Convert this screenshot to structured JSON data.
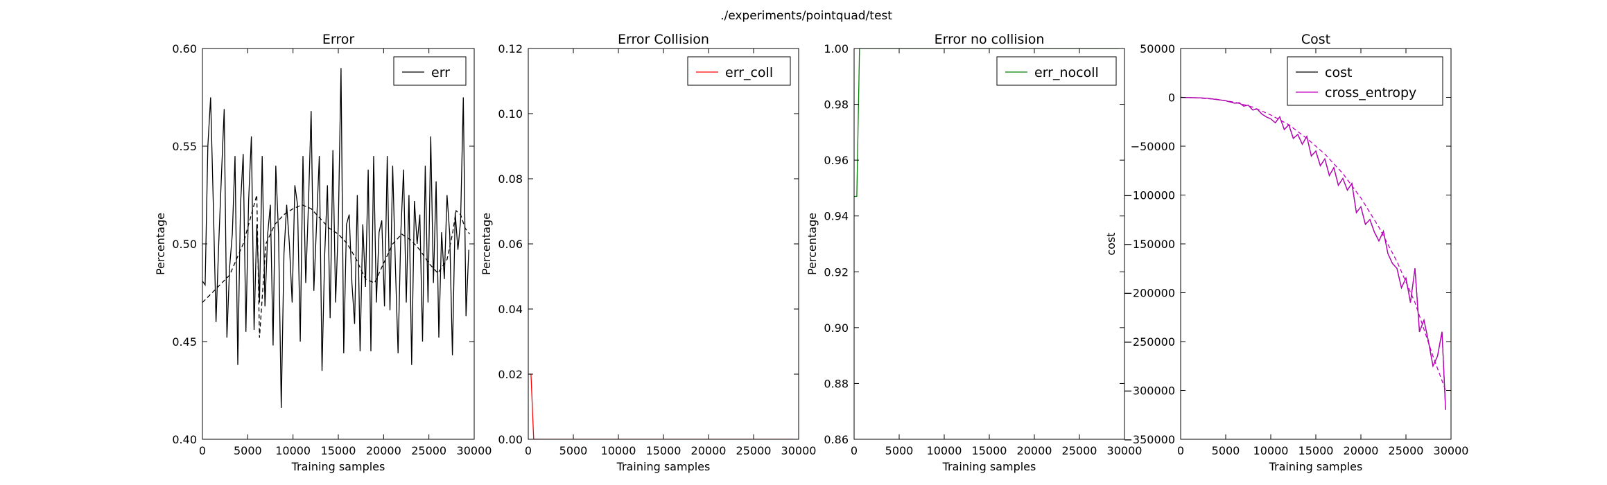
{
  "figure": {
    "suptitle": "./experiments/pointquad/test"
  },
  "chart_data": [
    {
      "type": "line",
      "title": "Error",
      "xlabel": "Training samples",
      "ylabel": "Percentage",
      "xlim": [
        0,
        30000
      ],
      "ylim": [
        0.4,
        0.6
      ],
      "xticks": [
        "0",
        "5000",
        "10000",
        "15000",
        "20000",
        "25000",
        "30000"
      ],
      "yticks": [
        "0.40",
        "0.45",
        "0.50",
        "0.55",
        "0.60"
      ],
      "legend_position": "top-right",
      "grid": false,
      "series": [
        {
          "name": "err",
          "color": "#000000",
          "style": "solid",
          "x": [
            0,
            300,
            600,
            900,
            1200,
            1500,
            1800,
            2100,
            2400,
            2700,
            3000,
            3300,
            3600,
            3900,
            4200,
            4500,
            4800,
            5100,
            5400,
            5700,
            6000,
            6300,
            6600,
            6900,
            7200,
            7500,
            7800,
            8100,
            8400,
            8700,
            9000,
            9300,
            9600,
            9900,
            10200,
            10500,
            10800,
            11100,
            11400,
            11700,
            12000,
            12300,
            12600,
            12900,
            13200,
            13500,
            13800,
            14100,
            14400,
            14700,
            15000,
            15300,
            15600,
            15900,
            16200,
            16500,
            16800,
            17100,
            17400,
            17700,
            18000,
            18300,
            18600,
            18900,
            19200,
            19500,
            19800,
            20100,
            20400,
            20700,
            21000,
            21300,
            21600,
            21900,
            22200,
            22500,
            22800,
            23100,
            23400,
            23700,
            24000,
            24300,
            24600,
            24900,
            25200,
            25500,
            25800,
            26100,
            26400,
            26700,
            27000,
            27300,
            27600,
            27900,
            28200,
            28500,
            28800,
            29100,
            29400
          ],
          "y": [
            0.481,
            0.479,
            0.55,
            0.575,
            0.52,
            0.46,
            0.5,
            0.535,
            0.569,
            0.452,
            0.488,
            0.505,
            0.545,
            0.438,
            0.52,
            0.546,
            0.455,
            0.522,
            0.555,
            0.456,
            0.51,
            0.47,
            0.545,
            0.468,
            0.505,
            0.52,
            0.448,
            0.54,
            0.505,
            0.416,
            0.495,
            0.52,
            0.5,
            0.47,
            0.53,
            0.52,
            0.45,
            0.545,
            0.48,
            0.52,
            0.568,
            0.476,
            0.51,
            0.545,
            0.435,
            0.495,
            0.53,
            0.462,
            0.548,
            0.47,
            0.51,
            0.59,
            0.444,
            0.51,
            0.515,
            0.48,
            0.459,
            0.525,
            0.445,
            0.51,
            0.478,
            0.538,
            0.445,
            0.545,
            0.47,
            0.506,
            0.512,
            0.468,
            0.545,
            0.466,
            0.54,
            0.489,
            0.444,
            0.506,
            0.538,
            0.47,
            0.525,
            0.438,
            0.522,
            0.5,
            0.515,
            0.45,
            0.54,
            0.47,
            0.555,
            0.48,
            0.532,
            0.452,
            0.506,
            0.482,
            0.525,
            0.505,
            0.443,
            0.516,
            0.497,
            0.512,
            0.575,
            0.463,
            0.497
          ]
        },
        {
          "name": "",
          "color": "#000000",
          "style": "dashed",
          "x": [
            0,
            1500,
            3000,
            4500,
            5400,
            6000,
            6300,
            7000,
            8000,
            9000,
            10000,
            11000,
            12000,
            13000,
            14000,
            15000,
            16000,
            17000,
            18000,
            19000,
            20000,
            21000,
            22000,
            23000,
            24000,
            25000,
            26000,
            27000,
            27600,
            28000,
            28500,
            29000,
            29500
          ],
          "y": [
            0.47,
            0.477,
            0.484,
            0.5,
            0.515,
            0.525,
            0.452,
            0.5,
            0.51,
            0.515,
            0.518,
            0.52,
            0.518,
            0.513,
            0.508,
            0.505,
            0.5,
            0.492,
            0.482,
            0.48,
            0.49,
            0.5,
            0.505,
            0.502,
            0.497,
            0.49,
            0.485,
            0.492,
            0.505,
            0.517,
            0.515,
            0.508,
            0.505
          ]
        }
      ]
    },
    {
      "type": "line",
      "title": "Error Collision",
      "xlabel": "Training samples",
      "ylabel": "Percentage",
      "xlim": [
        0,
        30000
      ],
      "ylim": [
        0.0,
        0.12
      ],
      "xticks": [
        "0",
        "5000",
        "10000",
        "15000",
        "20000",
        "25000",
        "30000"
      ],
      "yticks": [
        "0.00",
        "0.02",
        "0.04",
        "0.06",
        "0.08",
        "0.10",
        "0.12"
      ],
      "legend_position": "top-right",
      "grid": false,
      "series": [
        {
          "name": "err_coll",
          "color": "#ff0000",
          "style": "solid",
          "x": [
            0,
            300,
            600,
            900,
            5000,
            10000,
            15000,
            20000,
            25000,
            29400
          ],
          "y": [
            0.02,
            0.02,
            0.0,
            0.0,
            0.0,
            0.0,
            0.0,
            0.0,
            0.0,
            0.0
          ]
        }
      ]
    },
    {
      "type": "line",
      "title": "Error no collision",
      "xlabel": "Training samples",
      "ylabel": "Percentage",
      "xlim": [
        0,
        30000
      ],
      "ylim": [
        0.86,
        1.0
      ],
      "xticks": [
        "0",
        "5000",
        "10000",
        "15000",
        "20000",
        "25000",
        "30000"
      ],
      "yticks": [
        "0.86",
        "0.88",
        "0.90",
        "0.92",
        "0.94",
        "0.96",
        "0.98",
        "1.00"
      ],
      "legend_position": "top-right",
      "grid": false,
      "series": [
        {
          "name": "err_nocoll",
          "color": "#008000",
          "style": "solid",
          "x": [
            0,
            300,
            600,
            900,
            5000,
            10000,
            15000,
            20000,
            25000,
            29400
          ],
          "y": [
            0.947,
            0.947,
            1.0,
            1.0,
            1.0,
            1.0,
            1.0,
            1.0,
            1.0,
            1.0
          ]
        }
      ]
    },
    {
      "type": "line",
      "title": "Cost",
      "xlabel": "Training samples",
      "ylabel": "cost",
      "xlim": [
        0,
        30000
      ],
      "ylim": [
        -350000,
        50000
      ],
      "xticks": [
        "0",
        "5000",
        "10000",
        "15000",
        "20000",
        "25000",
        "30000"
      ],
      "yticks": [
        "−350000",
        "−300000",
        "−250000",
        "−200000",
        "−150000",
        "−100000",
        "−50000",
        "0",
        "50000"
      ],
      "yticks_values": [
        -350000,
        -300000,
        -250000,
        -200000,
        -150000,
        -100000,
        -50000,
        0,
        50000
      ],
      "legend_position": "top-right",
      "grid": false,
      "series": [
        {
          "name": "cost",
          "color": "#000000",
          "style": "solid",
          "x": [
            0,
            1000,
            2000,
            3000,
            4000,
            5000,
            6000,
            6500,
            7000,
            7500,
            8000,
            8500,
            9000,
            9500,
            10000,
            10500,
            11000,
            11500,
            12000,
            12500,
            13000,
            13500,
            14000,
            14500,
            15000,
            15500,
            16000,
            16500,
            17000,
            17500,
            18000,
            18500,
            19000,
            19500,
            20000,
            20500,
            21000,
            21500,
            22000,
            22500,
            23000,
            23500,
            24000,
            24500,
            25000,
            25500,
            26000,
            26500,
            27000,
            27500,
            28000,
            28500,
            29000,
            29400
          ],
          "y": [
            0,
            -300,
            -500,
            -1000,
            -2200,
            -3500,
            -6000,
            -5500,
            -9000,
            -8000,
            -13000,
            -12000,
            -17000,
            -20000,
            -22000,
            -26000,
            -20000,
            -33000,
            -28000,
            -42000,
            -38000,
            -48000,
            -40000,
            -60000,
            -55000,
            -70000,
            -63000,
            -80000,
            -72000,
            -90000,
            -83000,
            -95000,
            -88000,
            -118000,
            -112000,
            -130000,
            -125000,
            -138000,
            -147000,
            -137000,
            -160000,
            -170000,
            -175000,
            -195000,
            -185000,
            -210000,
            -175000,
            -240000,
            -228000,
            -250000,
            -275000,
            -265000,
            -240000,
            -320000
          ]
        },
        {
          "name": "cross_entropy",
          "color": "#bf00bf",
          "style": "solid",
          "x": [
            0,
            1000,
            2000,
            3000,
            4000,
            5000,
            6000,
            6500,
            7000,
            7500,
            8000,
            8500,
            9000,
            9500,
            10000,
            10500,
            11000,
            11500,
            12000,
            12500,
            13000,
            13500,
            14000,
            14500,
            15000,
            15500,
            16000,
            16500,
            17000,
            17500,
            18000,
            18500,
            19000,
            19500,
            20000,
            20500,
            21000,
            21500,
            22000,
            22500,
            23000,
            23500,
            24000,
            24500,
            25000,
            25500,
            26000,
            26500,
            27000,
            27500,
            28000,
            28500,
            29000,
            29400
          ],
          "y": [
            0,
            -300,
            -500,
            -1000,
            -2200,
            -3500,
            -6000,
            -5500,
            -9000,
            -8000,
            -13000,
            -12000,
            -17000,
            -20000,
            -22000,
            -26000,
            -20000,
            -33000,
            -28000,
            -42000,
            -38000,
            -48000,
            -40000,
            -60000,
            -55000,
            -70000,
            -63000,
            -80000,
            -72000,
            -90000,
            -83000,
            -95000,
            -88000,
            -118000,
            -112000,
            -130000,
            -125000,
            -138000,
            -147000,
            -137000,
            -160000,
            -170000,
            -175000,
            -195000,
            -185000,
            -210000,
            -175000,
            -240000,
            -228000,
            -250000,
            -275000,
            -265000,
            -240000,
            -320000
          ]
        },
        {
          "name": "",
          "color": "#bf00bf",
          "style": "dashed",
          "x": [
            0,
            2000,
            4000,
            6000,
            8000,
            10000,
            12000,
            14000,
            16000,
            18000,
            20000,
            22000,
            24000,
            26000,
            28000,
            29000,
            29400
          ],
          "y": [
            0,
            -700,
            -2000,
            -5000,
            -10000,
            -18000,
            -28000,
            -42000,
            -58000,
            -78000,
            -103000,
            -133000,
            -168000,
            -210000,
            -265000,
            -290000,
            -300000
          ]
        }
      ]
    }
  ]
}
